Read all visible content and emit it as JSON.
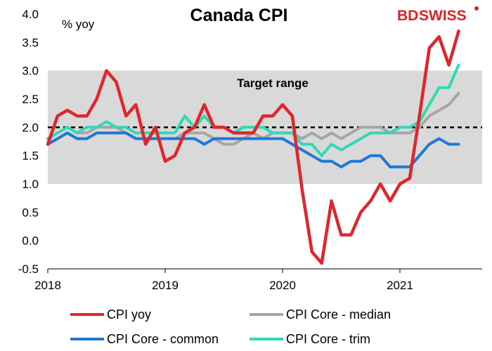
{
  "chart_data": {
    "type": "line",
    "title": "Canada CPI",
    "ylabel": "% yoy",
    "xlabel": "",
    "ylim": [
      -0.5,
      4.0
    ],
    "yticks": [
      "4.0",
      "3.5",
      "3.0",
      "2.5",
      "2.0",
      "1.5",
      "1.0",
      "0.5",
      "0.0",
      "-0.5"
    ],
    "xticks": [
      "2018",
      "2019",
      "2020",
      "2021"
    ],
    "target_band": {
      "low": 1.0,
      "high": 3.0,
      "label": "Target range",
      "color": "#d9d9d9"
    },
    "target_line": {
      "value": 2.0,
      "style": "dashed"
    },
    "legend_position": "bottom",
    "series": [
      {
        "name": "CPI yoy",
        "color": "#e0262c",
        "values": [
          1.7,
          2.2,
          2.3,
          2.2,
          2.2,
          2.5,
          3.0,
          2.8,
          2.2,
          2.4,
          1.7,
          2.0,
          1.4,
          1.5,
          1.9,
          2.0,
          2.4,
          2.0,
          2.0,
          1.9,
          1.9,
          1.9,
          2.2,
          2.2,
          2.4,
          2.2,
          0.9,
          -0.2,
          -0.4,
          0.7,
          0.1,
          0.1,
          0.5,
          0.7,
          1.0,
          0.7,
          1.0,
          1.1,
          2.2,
          3.4,
          3.6,
          3.1,
          3.7
        ]
      },
      {
        "name": "CPI Core - median",
        "color": "#a6a6a6",
        "values": [
          1.8,
          1.9,
          2.0,
          1.9,
          1.9,
          2.0,
          2.0,
          2.0,
          1.9,
          1.8,
          1.8,
          1.8,
          1.8,
          1.8,
          1.9,
          1.9,
          1.9,
          1.8,
          1.7,
          1.7,
          1.8,
          1.9,
          1.8,
          1.9,
          1.9,
          1.9,
          1.8,
          1.9,
          1.8,
          1.9,
          1.8,
          1.9,
          2.0,
          2.0,
          2.0,
          1.9,
          1.9,
          1.9,
          2.0,
          2.2,
          2.3,
          2.4,
          2.6
        ]
      },
      {
        "name": "CPI Core - common",
        "color": "#1f77d6",
        "values": [
          1.7,
          1.8,
          1.9,
          1.8,
          1.8,
          1.9,
          1.9,
          1.9,
          1.9,
          1.8,
          1.8,
          1.8,
          1.8,
          1.8,
          1.8,
          1.8,
          1.7,
          1.8,
          1.8,
          1.8,
          1.8,
          1.8,
          1.8,
          1.8,
          1.8,
          1.7,
          1.6,
          1.5,
          1.4,
          1.4,
          1.3,
          1.4,
          1.4,
          1.5,
          1.5,
          1.3,
          1.3,
          1.3,
          1.5,
          1.7,
          1.8,
          1.7,
          1.7
        ]
      },
      {
        "name": "CPI Core - trim",
        "color": "#2ed9b4",
        "values": [
          1.8,
          1.9,
          2.0,
          1.9,
          2.0,
          2.0,
          2.1,
          2.0,
          2.0,
          1.9,
          1.9,
          1.9,
          1.9,
          1.9,
          2.2,
          2.0,
          2.2,
          2.0,
          2.0,
          1.9,
          2.0,
          2.0,
          2.0,
          1.9,
          1.9,
          1.9,
          1.7,
          1.7,
          1.5,
          1.7,
          1.6,
          1.7,
          1.8,
          1.9,
          1.9,
          1.9,
          2.0,
          2.0,
          2.1,
          2.4,
          2.7,
          2.7,
          3.1
        ]
      }
    ]
  },
  "logo": {
    "part1": "BD",
    "part2": "SWISS"
  }
}
